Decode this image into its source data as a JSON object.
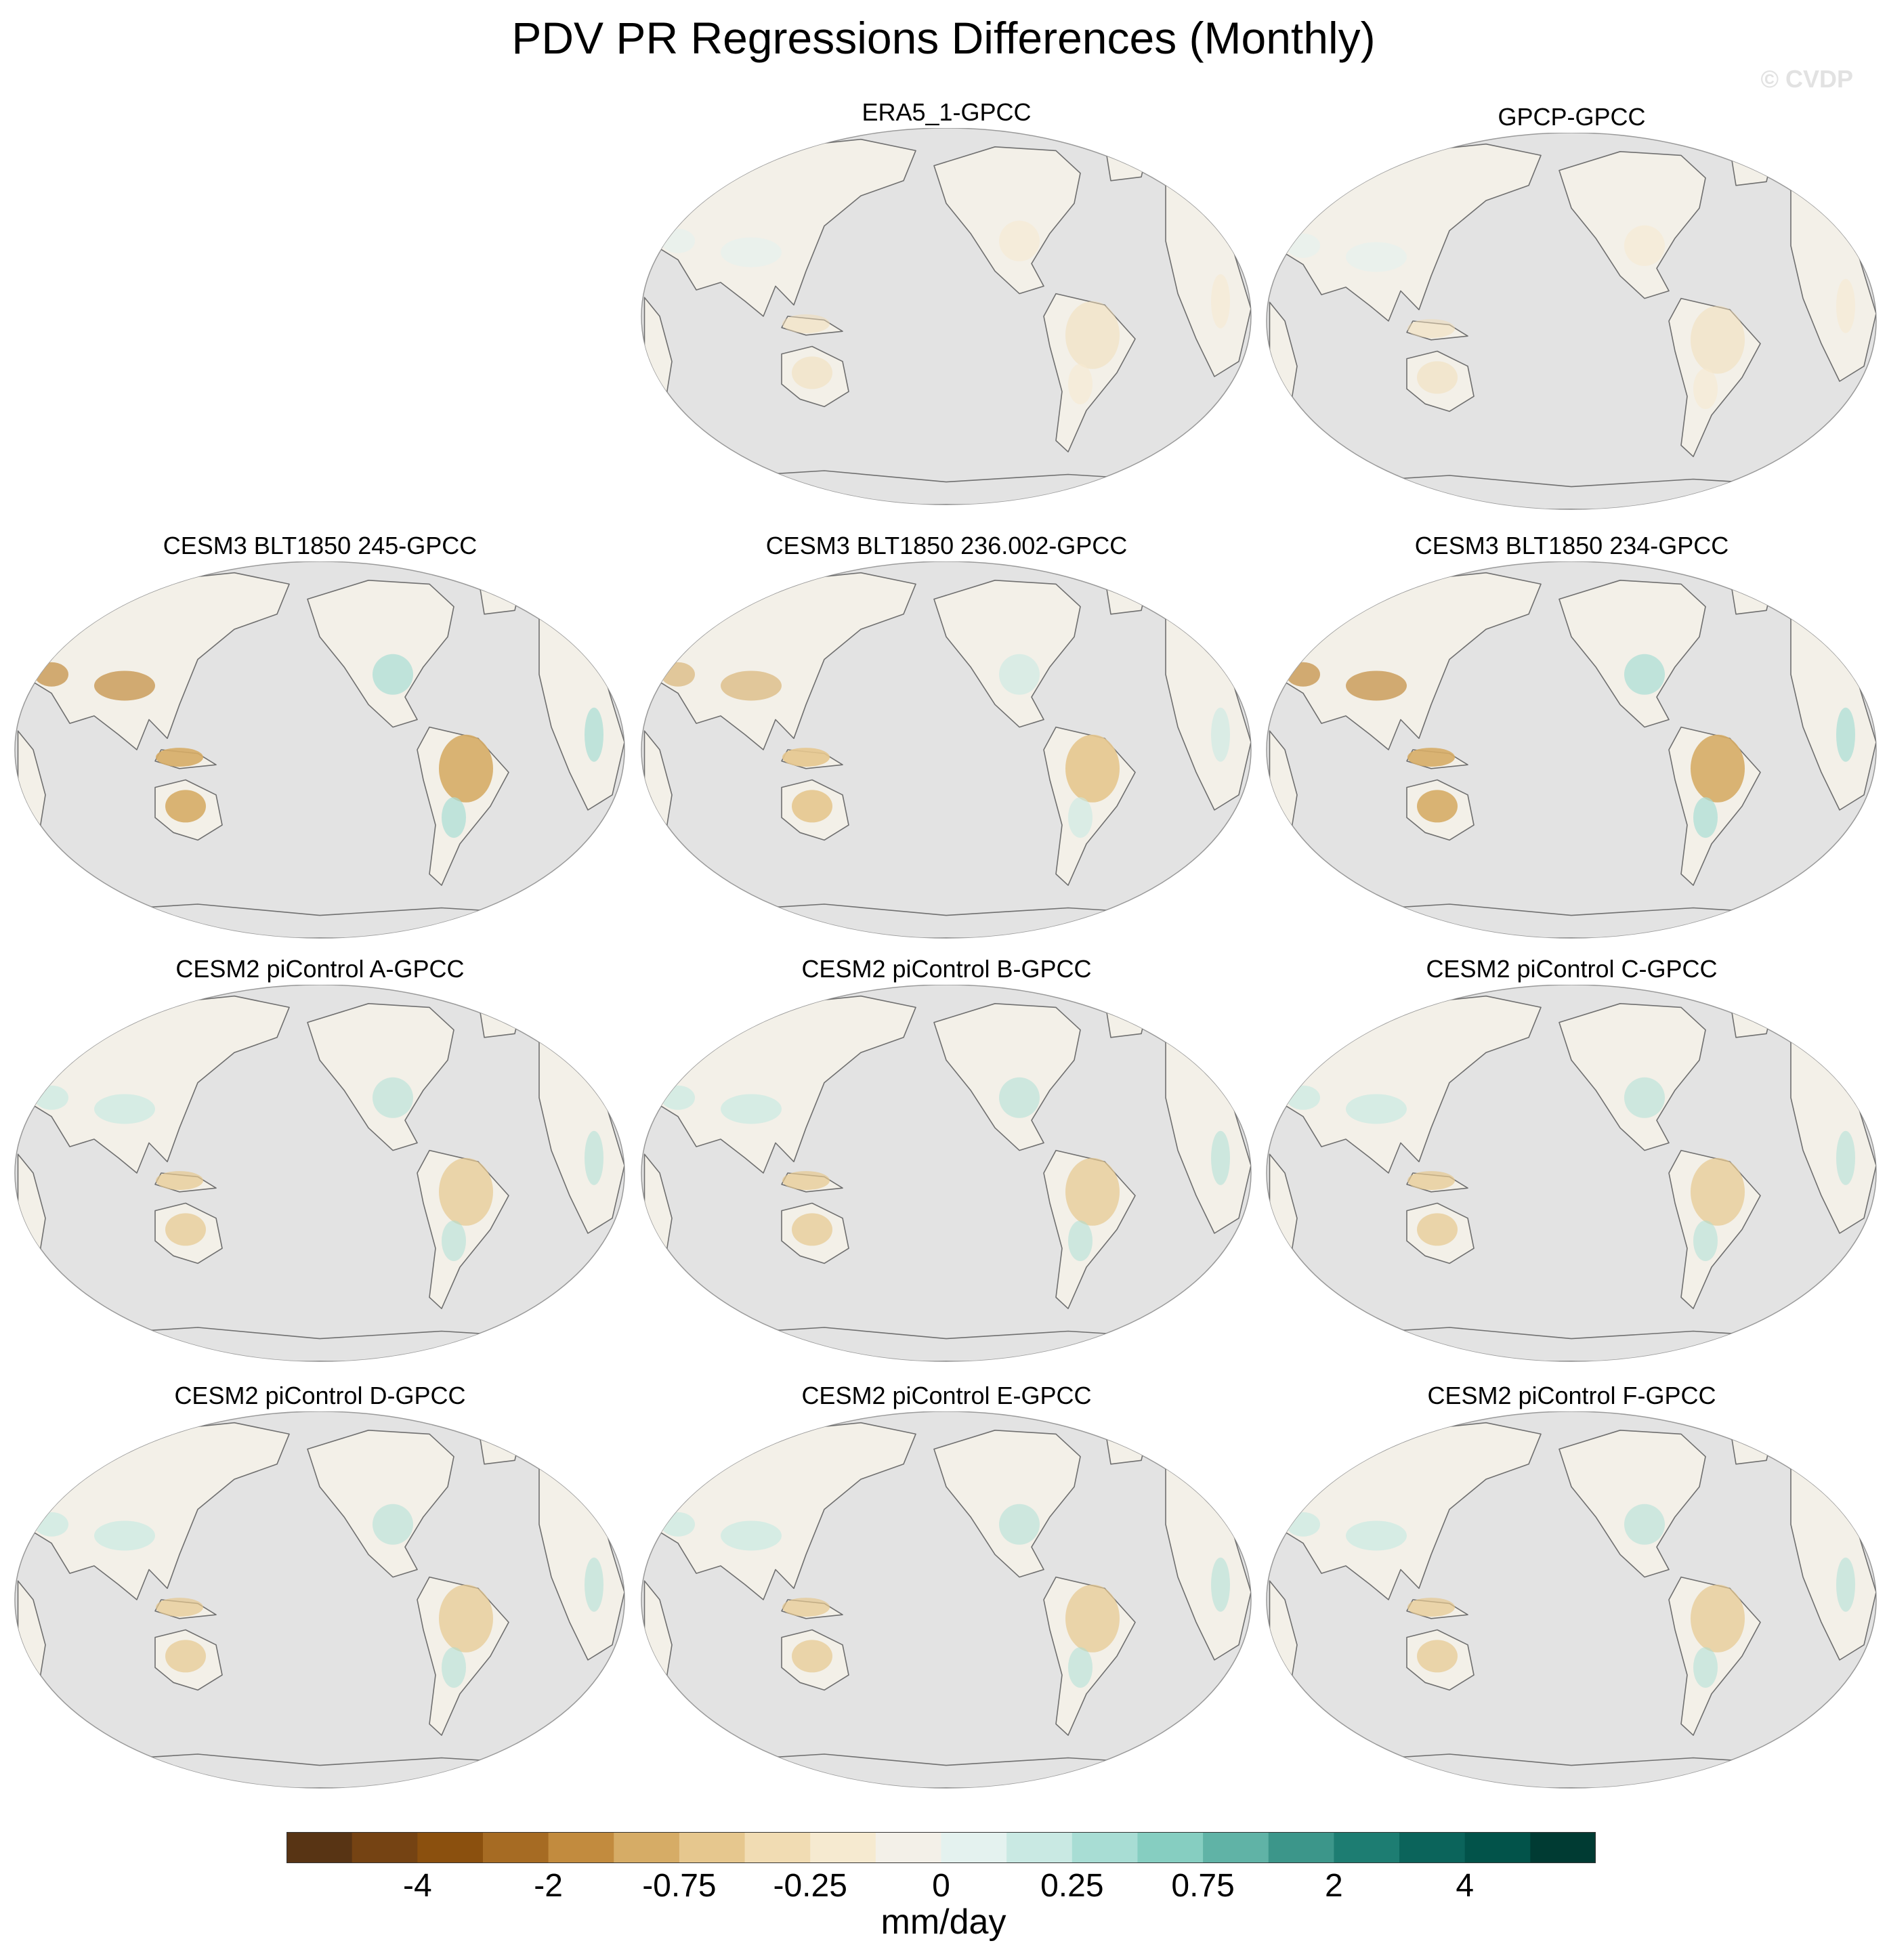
{
  "title": "PDV PR Regressions Differences (Monthly)",
  "watermark": "© CVDP",
  "panels": [
    {
      "label": "ERA5_1-GPCC",
      "pattern": "weak"
    },
    {
      "label": "GPCP-GPCC",
      "pattern": "weak"
    },
    {
      "label": "CESM3 BLT1850 245-GPCC",
      "pattern": "strong-dry-tropics"
    },
    {
      "label": "CESM3 BLT1850 236.002-GPCC",
      "pattern": "moderate-dry-tropics"
    },
    {
      "label": "CESM3 BLT1850 234-GPCC",
      "pattern": "strong-dry-tropics"
    },
    {
      "label": "CESM2 piControl A-GPCC",
      "pattern": "mixed"
    },
    {
      "label": "CESM2 piControl B-GPCC",
      "pattern": "mixed"
    },
    {
      "label": "CESM2 piControl C-GPCC",
      "pattern": "mixed"
    },
    {
      "label": "CESM2 piControl D-GPCC",
      "pattern": "mixed"
    },
    {
      "label": "CESM2 piControl E-GPCC",
      "pattern": "mixed"
    },
    {
      "label": "CESM2 piControl F-GPCC",
      "pattern": "mixed"
    }
  ],
  "map": {
    "projection": "Robinson, Pacific-centered",
    "ocean_color": "#e3e3e3",
    "coastline_color": "#6f6f6f"
  },
  "colorbar": {
    "colors": [
      "#583414",
      "#754313",
      "#8b500e",
      "#a66b23",
      "#c28b3e",
      "#d6ac66",
      "#e6c78e",
      "#f1dcb3",
      "#f6ead0",
      "#f3f0e8",
      "#e4f2ef",
      "#c9e9e3",
      "#a8ddd4",
      "#86cec1",
      "#60b3a6",
      "#3c968a",
      "#1d7d72",
      "#0b645b",
      "#02534a",
      "#003b33"
    ],
    "tick_labels": [
      "-4",
      "-2",
      "-0.75",
      "-0.25",
      "0",
      "0.25",
      "0.75",
      "2",
      "4"
    ],
    "units": "mm/day"
  }
}
